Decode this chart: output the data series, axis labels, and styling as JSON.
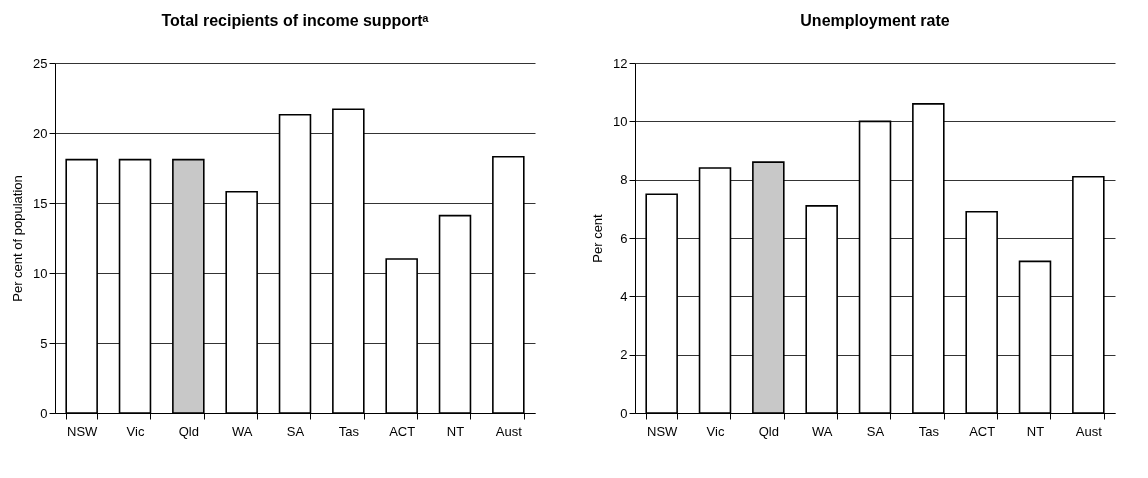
{
  "chart_data": [
    {
      "type": "bar",
      "title": "Total recipients of income supportᵃ",
      "ylabel": "Per cent of population",
      "categories": [
        "NSW",
        "Vic",
        "Qld",
        "WA",
        "SA",
        "Tas",
        "ACT",
        "NT",
        "Aust"
      ],
      "values": [
        18.1,
        18.1,
        18.1,
        15.8,
        21.3,
        21.7,
        11.0,
        14.1,
        18.3
      ],
      "colors": [
        "#ffffff",
        "#ffffff",
        "#c8c8c8",
        "#ffffff",
        "#ffffff",
        "#ffffff",
        "#ffffff",
        "#ffffff",
        "#ffffff"
      ],
      "ylim": [
        0,
        25
      ],
      "yticks": [
        0,
        5,
        10,
        15,
        20,
        25
      ],
      "grid": "y"
    },
    {
      "type": "bar",
      "title": "Unemployment rate",
      "ylabel": "Per cent",
      "categories": [
        "NSW",
        "Vic",
        "Qld",
        "WA",
        "SA",
        "Tas",
        "ACT",
        "NT",
        "Aust"
      ],
      "values": [
        7.5,
        8.4,
        8.6,
        7.1,
        10.0,
        10.6,
        6.9,
        5.2,
        8.1
      ],
      "colors": [
        "#ffffff",
        "#ffffff",
        "#c8c8c8",
        "#ffffff",
        "#ffffff",
        "#ffffff",
        "#ffffff",
        "#ffffff",
        "#ffffff"
      ],
      "ylim": [
        0,
        12
      ],
      "yticks": [
        0,
        2,
        4,
        6,
        8,
        10,
        12
      ],
      "grid": "y"
    }
  ]
}
